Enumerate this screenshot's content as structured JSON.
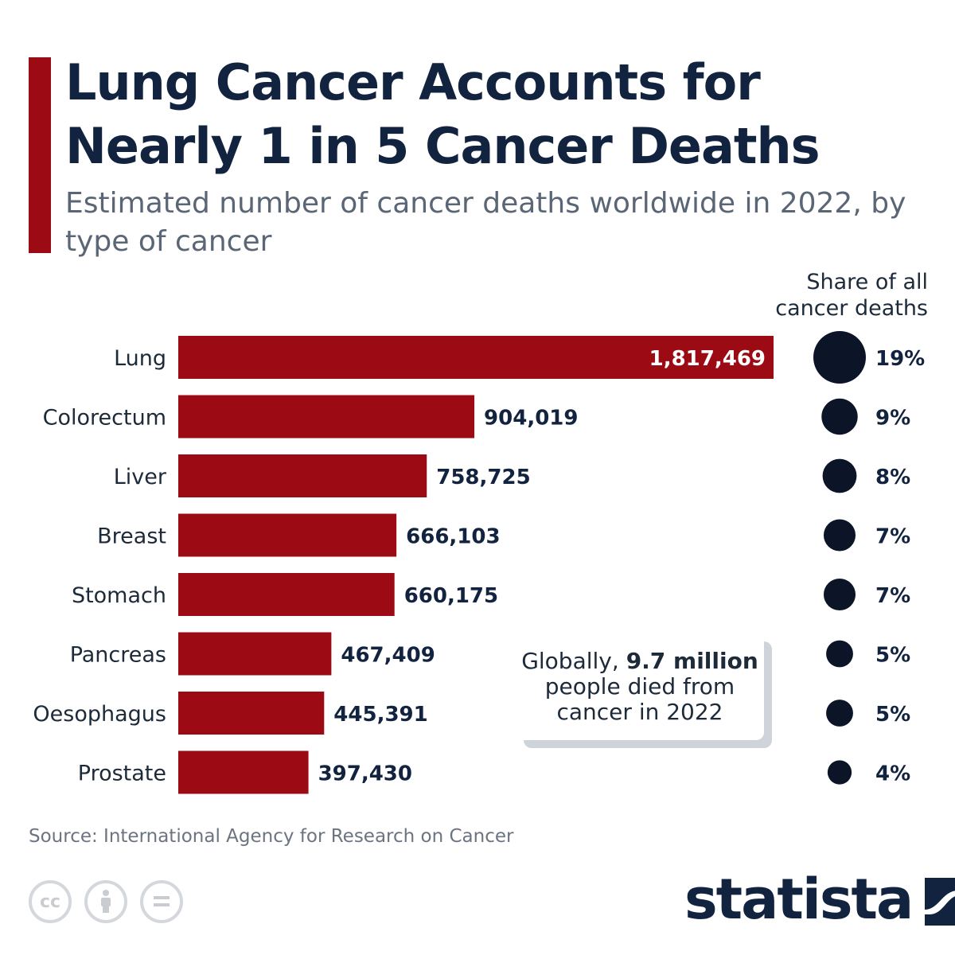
{
  "header": {
    "title": "Lung Cancer Accounts for Nearly 1 in 5 Cancer Deaths",
    "subtitle": "Estimated number of cancer deaths worldwide in 2022, by type of cancer"
  },
  "share_header": "Share of all cancer deaths",
  "callout": {
    "prefix": "Globally,",
    "highlight": "9.7 million",
    "suffix": "people died from cancer in 2022"
  },
  "footer": {
    "source": "Source: International Agency for Research on Cancer",
    "brand": "statista",
    "license_icons": [
      "cc-icon",
      "attribution-icon",
      "no-derivatives-icon"
    ]
  },
  "colors": {
    "bar": "#9c0a13",
    "dot": "#0b1527",
    "title": "#12233f"
  },
  "chart_data": {
    "type": "bar",
    "orientation": "horizontal",
    "categories": [
      "Lung",
      "Colorectum",
      "Liver",
      "Breast",
      "Stomach",
      "Pancreas",
      "Oesophagus",
      "Prostate"
    ],
    "values": [
      1817469,
      904019,
      758725,
      666103,
      660175,
      467409,
      445391,
      397430
    ],
    "value_labels": [
      "1,817,469",
      "904,019",
      "758,725",
      "666,103",
      "660,175",
      "467,409",
      "445,391",
      "397,430"
    ],
    "shares": [
      19,
      9,
      8,
      7,
      7,
      5,
      5,
      4
    ],
    "share_labels": [
      "19%",
      "9%",
      "8%",
      "7%",
      "7%",
      "5%",
      "5%",
      "4%"
    ],
    "grid": false
  }
}
